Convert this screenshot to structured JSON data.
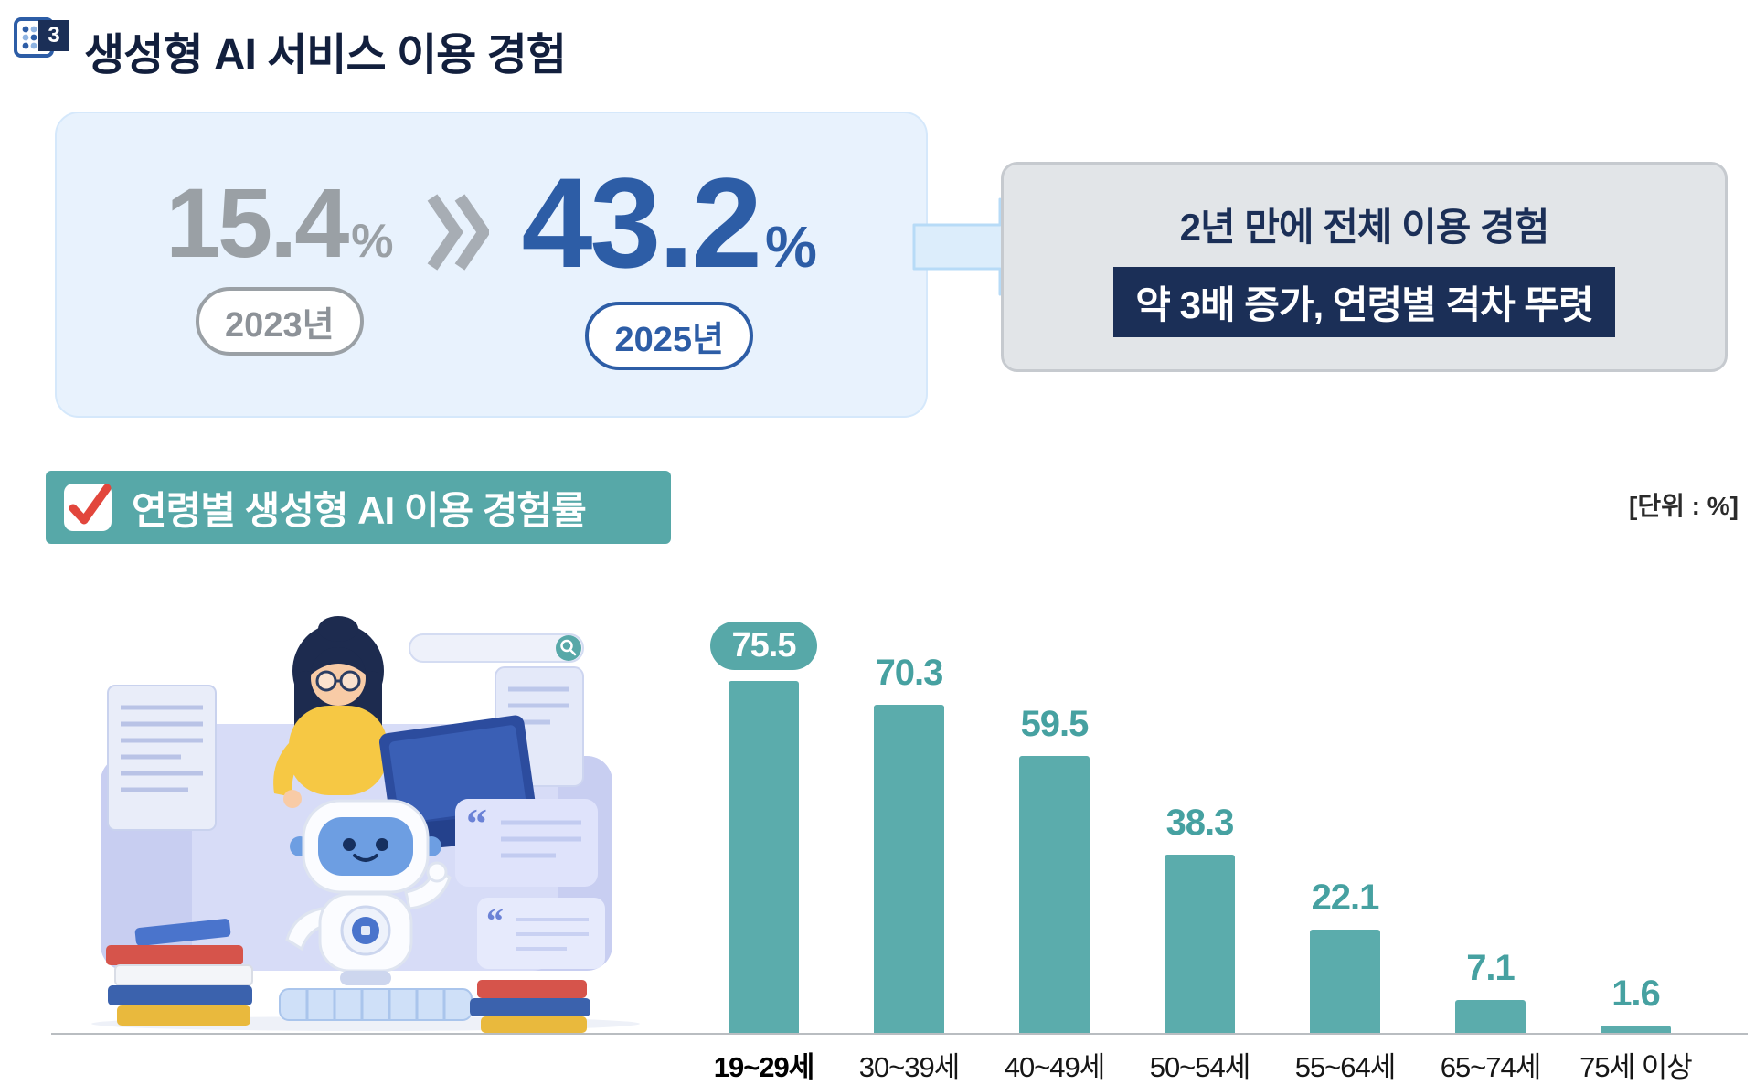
{
  "header": {
    "badge": "3",
    "title": "생성형 AI 서비스 이용 경험"
  },
  "hero": {
    "before": {
      "value": "15.4",
      "unit": "%",
      "label": "2023년"
    },
    "after": {
      "value": "43.2",
      "unit": "%",
      "label": "2025년"
    },
    "callout": {
      "line1": "2년 만에 전체 이용 경험",
      "highlight": "약 3배 증가, 연령별 격차 뚜렷"
    }
  },
  "section": {
    "title": "연령별 생성형 AI 이용 경험률",
    "unit_note": "[단위 : %]"
  },
  "chart_data": {
    "type": "bar",
    "title": "연령별 생성형 AI 이용 경험률",
    "categories": [
      "19~29세",
      "30~39세",
      "40~49세",
      "50~54세",
      "55~64세",
      "65~74세",
      "75세 이상"
    ],
    "values": [
      75.5,
      70.3,
      59.5,
      38.3,
      22.1,
      7.1,
      1.6
    ],
    "xlabel": "",
    "ylabel": "%",
    "ylim": [
      0,
      80
    ],
    "grid": false,
    "legend": "none",
    "value_labels": true,
    "highlight_index": 0
  },
  "icons": {
    "section_grid_icon": "dot-grid",
    "double_chevron_icon": "»",
    "arrow_right_icon": "→",
    "checkbox_check_icon": "✓",
    "search_icon": "🔍",
    "illustration": "woman-with-laptop-robot-and-books"
  },
  "colors": {
    "teal": "#57a8a8",
    "teal-text": "#46a1a1",
    "bar": "#5bacac",
    "navy": "#1b2f57",
    "blue": "#2d5da6",
    "gray": "#9aa0a5"
  }
}
